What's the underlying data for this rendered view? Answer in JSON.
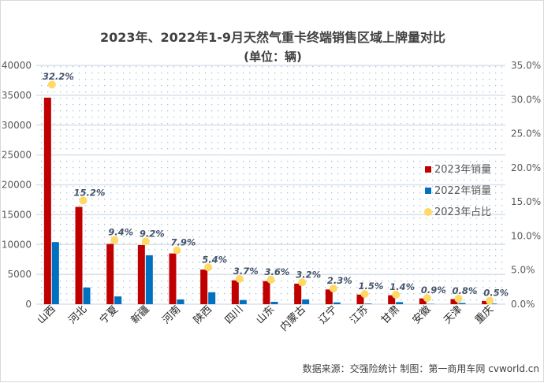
{
  "chart_data": {
    "type": "bar",
    "title": "2023年、2022年1-9月天然气重卡终端销售区域上牌量对比",
    "subtitle": "(单位：辆)",
    "categories": [
      "山西",
      "河北",
      "宁夏",
      "新疆",
      "河南",
      "陕西",
      "四川",
      "山东",
      "内蒙古",
      "辽宁",
      "江苏",
      "甘肃",
      "安徽",
      "天津",
      "重庆"
    ],
    "series": [
      {
        "name": "2023年销量",
        "type": "bar",
        "axis": "left",
        "color": "#c00000",
        "values": [
          34600,
          16300,
          10100,
          9900,
          8500,
          5800,
          4000,
          3870,
          3440,
          2470,
          1610,
          1500,
          970,
          860,
          540
        ]
      },
      {
        "name": "2022年销量",
        "type": "bar",
        "axis": "left",
        "color": "#0070c0",
        "values": [
          10400,
          2800,
          1300,
          8200,
          800,
          2000,
          700,
          400,
          800,
          300,
          100,
          350,
          50,
          200,
          100
        ]
      },
      {
        "name": "2023年占比",
        "type": "scatter",
        "axis": "right",
        "color": "#ffd966",
        "values": [
          32.2,
          15.2,
          9.4,
          9.2,
          7.9,
          5.4,
          3.7,
          3.6,
          3.2,
          2.3,
          1.5,
          1.4,
          0.9,
          0.8,
          0.5
        ],
        "labels": [
          "32.2%",
          "15.2%",
          "9.4%",
          "9.2%",
          "7.9%",
          "5.4%",
          "3.7%",
          "3.6%",
          "3.2%",
          "2.3%",
          "1.5%",
          "1.4%",
          "0.9%",
          "0.8%",
          "0.5%"
        ]
      }
    ],
    "ylim": [
      0,
      40000
    ],
    "yticks": [
      "0",
      "5000",
      "10000",
      "15000",
      "20000",
      "25000",
      "30000",
      "35000",
      "40000"
    ],
    "y2lim": [
      0,
      35
    ],
    "y2ticks": [
      "0.0%",
      "5.0%",
      "10.0%",
      "15.0%",
      "20.0%",
      "25.0%",
      "30.0%",
      "35.0%"
    ],
    "legend": "right",
    "grid": true
  },
  "footer": "数据来源：交强险统计  制图：第一商用车网 cvworld.cn"
}
